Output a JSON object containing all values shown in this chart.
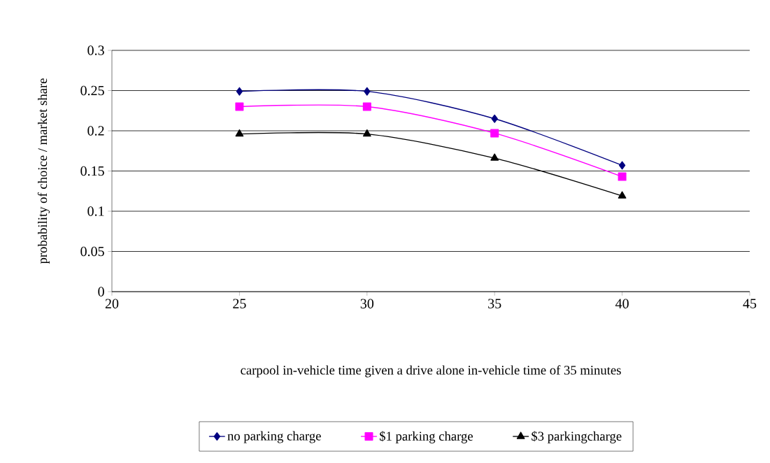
{
  "chart_data": {
    "type": "line",
    "xlabel": "carpool in-vehicle time given a drive alone in-vehicle time of 35 minutes",
    "ylabel": "probability of choice / market share",
    "x": [
      25,
      30,
      35,
      40
    ],
    "series": [
      {
        "name": "no parking charge",
        "color": "#000080",
        "marker": "diamond",
        "values": [
          0.249,
          0.249,
          0.215,
          0.157
        ]
      },
      {
        "name": "$1 parking charge",
        "color": "#ff00ff",
        "marker": "square",
        "values": [
          0.23,
          0.23,
          0.197,
          0.143
        ]
      },
      {
        "name": "$3 parkingcharge",
        "color": "#000000",
        "marker": "triangle",
        "values": [
          0.196,
          0.196,
          0.166,
          0.119
        ]
      }
    ],
    "xlim": [
      20,
      45
    ],
    "xticks": [
      20,
      25,
      30,
      35,
      40,
      45
    ],
    "ylim": [
      0,
      0.3
    ],
    "yticks": [
      0,
      0.05,
      0.1,
      0.15,
      0.2,
      0.25,
      0.3
    ],
    "grid": "y",
    "legend": "bottom"
  }
}
